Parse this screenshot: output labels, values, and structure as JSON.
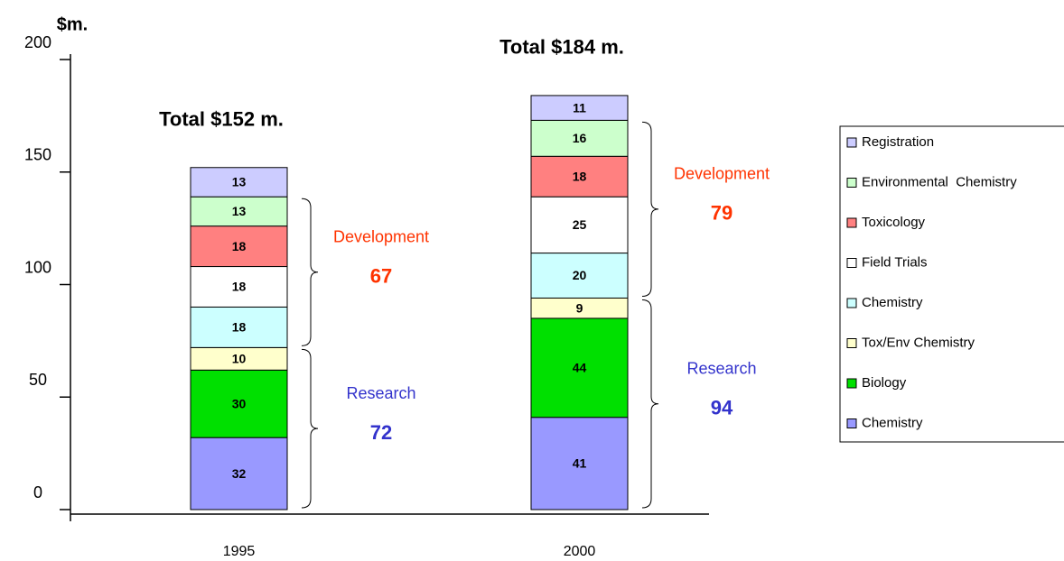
{
  "chart_data": {
    "type": "stacked-bar",
    "ylabel": "$m.",
    "categories": [
      "1995",
      "2000"
    ],
    "ylim": [
      0,
      200
    ],
    "yticks": [
      0,
      50,
      100,
      150,
      200
    ],
    "series": [
      {
        "name": "Chemistry",
        "color": "#9999ff",
        "values": [
          32,
          41
        ]
      },
      {
        "name": "Biology",
        "color": "#00e000",
        "values": [
          30,
          44
        ]
      },
      {
        "name": "Tox/Env Chemistry",
        "color": "#ffffcc",
        "values": [
          10,
          9
        ]
      },
      {
        "name": "Chemistry",
        "color": "#ccffff",
        "values": [
          18,
          20
        ]
      },
      {
        "name": "Field Trials",
        "color": "#ffffff",
        "values": [
          18,
          25
        ]
      },
      {
        "name": "Toxicology",
        "color": "#ff8080",
        "values": [
          18,
          18
        ]
      },
      {
        "name": "Environmental  Chemistry",
        "color": "#ccffcc",
        "values": [
          13,
          16
        ]
      },
      {
        "name": "Registration",
        "color": "#ccccff",
        "values": [
          13,
          11
        ]
      }
    ],
    "totals": [
      "Total $152 m.",
      "Total $184 m."
    ],
    "groups": [
      {
        "name": "Research",
        "color": "#3333cc",
        "values": [
          72,
          94
        ]
      },
      {
        "name": "Development",
        "color": "#ff3300",
        "values": [
          67,
          79
        ]
      }
    ]
  }
}
